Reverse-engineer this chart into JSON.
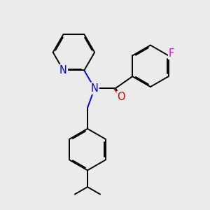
{
  "bg_color": "#ebebeb",
  "atom_colors": {
    "N": "#0000ee",
    "O": "#dd0000",
    "F": "#ee00ee",
    "C": "#000000"
  },
  "bond_lw": 1.4,
  "dbo": 0.055,
  "font_size": 10.5,
  "figsize": [
    3.0,
    3.0
  ],
  "dpi": 100,
  "xlim": [
    0,
    10
  ],
  "ylim": [
    0,
    10
  ]
}
